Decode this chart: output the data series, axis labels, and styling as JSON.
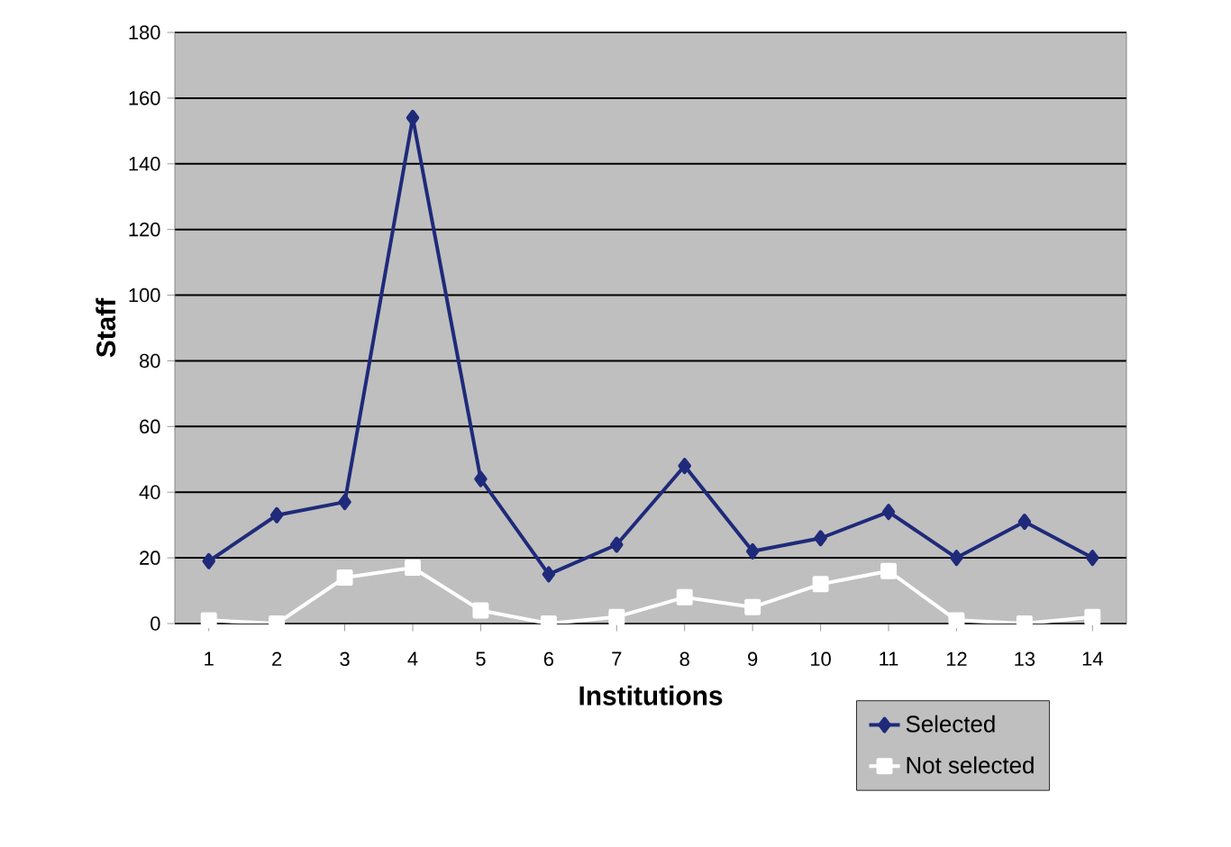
{
  "chart_data": {
    "type": "line",
    "xlabel": "Institutions",
    "ylabel": "Staff",
    "categories": [
      "1",
      "2",
      "3",
      "4",
      "5",
      "6",
      "7",
      "8",
      "9",
      "10",
      "11",
      "12",
      "13",
      "14"
    ],
    "series": [
      {
        "name": "Selected",
        "color": "#1f2a7a",
        "marker": "diamond",
        "values": [
          19,
          33,
          37,
          154,
          44,
          15,
          24,
          48,
          22,
          26,
          34,
          20,
          31,
          20
        ]
      },
      {
        "name": "Not selected",
        "color": "#ffffff",
        "marker": "square",
        "values": [
          1,
          0,
          14,
          17,
          4,
          0,
          2,
          8,
          5,
          12,
          16,
          1,
          0,
          2
        ]
      }
    ],
    "ylim": [
      0,
      180
    ],
    "yticks": [
      0,
      20,
      40,
      60,
      80,
      100,
      120,
      140,
      160,
      180
    ],
    "grid": "y",
    "legend": "bottom right"
  }
}
